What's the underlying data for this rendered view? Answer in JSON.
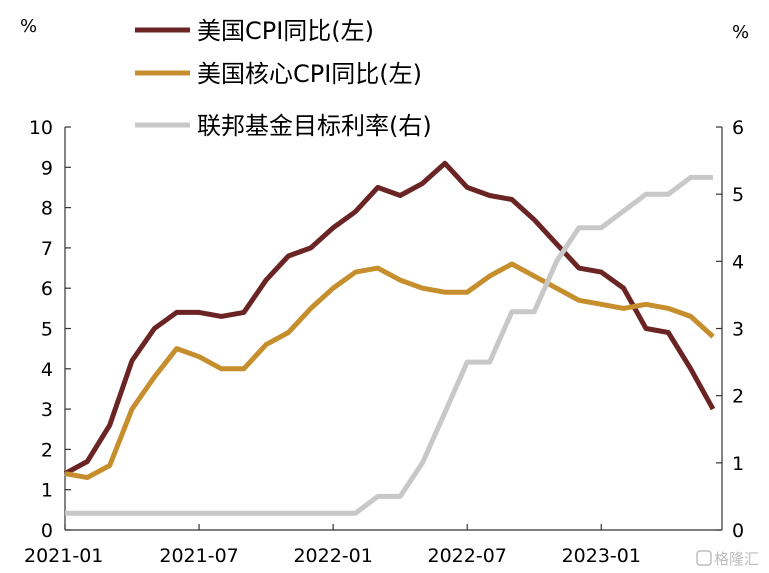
{
  "chart_data": {
    "type": "line",
    "y_left_unit": "%",
    "y_right_unit": "%",
    "ylim_left": [
      0,
      10
    ],
    "ylim_right": [
      0,
      6
    ],
    "yticks_left": [
      "0",
      "1",
      "2",
      "3",
      "4",
      "5",
      "6",
      "7",
      "8",
      "9",
      "10"
    ],
    "yticks_right": [
      "0",
      "1",
      "2",
      "3",
      "4",
      "5",
      "6"
    ],
    "x_tick_labels": [
      "2021-01",
      "2021-07",
      "2022-01",
      "2022-07",
      "2023-01"
    ],
    "x_tick_index": [
      0,
      6,
      12,
      18,
      24
    ],
    "n_points": 30,
    "grid": false,
    "legend_position": "top",
    "series": [
      {
        "name": "美国CPI同比(左)",
        "axis": "left",
        "color": "#6b2424",
        "values": [
          1.4,
          1.7,
          2.6,
          4.2,
          5.0,
          5.4,
          5.4,
          5.3,
          5.4,
          6.2,
          6.8,
          7.0,
          7.5,
          7.9,
          8.5,
          8.3,
          8.6,
          9.1,
          8.5,
          8.3,
          8.2,
          7.7,
          7.1,
          6.5,
          6.4,
          6.0,
          5.0,
          4.9,
          4.0,
          3.0
        ]
      },
      {
        "name": "美国核心CPI同比(左)",
        "axis": "left",
        "color": "#c68e2c",
        "values": [
          1.4,
          1.3,
          1.6,
          3.0,
          3.8,
          4.5,
          4.3,
          4.0,
          4.0,
          4.6,
          4.9,
          5.5,
          6.0,
          6.4,
          6.5,
          6.2,
          6.0,
          5.9,
          5.9,
          6.3,
          6.6,
          6.3,
          6.0,
          5.7,
          5.6,
          5.5,
          5.6,
          5.5,
          5.3,
          4.8
        ]
      },
      {
        "name": "联邦基金目标利率(右)",
        "axis": "right",
        "color": "#c8c8c8",
        "values": [
          0.25,
          0.25,
          0.25,
          0.25,
          0.25,
          0.25,
          0.25,
          0.25,
          0.25,
          0.25,
          0.25,
          0.25,
          0.25,
          0.25,
          0.5,
          0.5,
          1.0,
          1.75,
          2.5,
          2.5,
          3.25,
          3.25,
          4.0,
          4.5,
          4.5,
          4.75,
          5.0,
          5.0,
          5.25,
          5.25
        ]
      }
    ]
  },
  "watermark": "格隆汇"
}
